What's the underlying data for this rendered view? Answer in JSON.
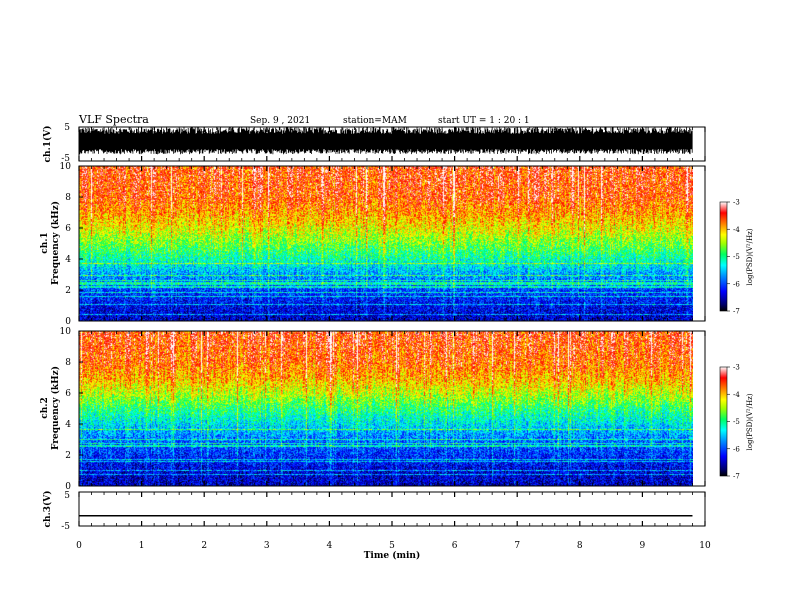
{
  "header": {
    "title": "VLF Spectra",
    "date": "Sep. 9 , 2021",
    "station": "station=MAM",
    "start": "start  UT =   1 : 20 : 1"
  },
  "colors": {
    "spectrum": [
      "#000080",
      "#0000ff",
      "#0080ff",
      "#00ffff",
      "#00ff80",
      "#80ff00",
      "#ffff00",
      "#ff8000",
      "#ff0000"
    ]
  },
  "chart_data": [
    {
      "type": "line",
      "panel": "ch1-waveform",
      "ylabel": "ch.1(V)",
      "yticks": [
        "5",
        "-5"
      ],
      "ylim": [
        -5,
        5
      ],
      "xlim": [
        0,
        10
      ],
      "description_values": {
        "amplitude_min": -3,
        "amplitude_max": 5
      }
    },
    {
      "type": "heatmap",
      "panel": "ch1-spectrogram",
      "ylabel": "ch.1\nFrequency (kHz)",
      "yticks": [
        "0",
        "2",
        "4",
        "6",
        "8",
        "10"
      ],
      "ylim": [
        0,
        10
      ],
      "xlim": [
        0,
        9.8
      ],
      "colorbar": {
        "label": "log(PSD)(V²/Hz)",
        "ticks": [
          "-3",
          "-4",
          "-5",
          "-6",
          "-7"
        ],
        "range": [
          -7,
          -3
        ]
      },
      "levels_by_frequency_khz": {
        "0": -6.5,
        "1": -6.3,
        "2": -6.0,
        "3": -5.6,
        "4": -5.0,
        "5": -4.5,
        "6": -4.0,
        "7": -3.6,
        "8": -3.3,
        "10": -3.2
      }
    },
    {
      "type": "heatmap",
      "panel": "ch2-spectrogram",
      "ylabel": "ch.2\nFrequency (kHz)",
      "yticks": [
        "0",
        "2",
        "4",
        "6",
        "8",
        "10"
      ],
      "ylim": [
        0,
        10
      ],
      "xlim": [
        0,
        9.8
      ],
      "colorbar": {
        "label": "log(PSD)(V²/Hz)",
        "ticks": [
          "-3",
          "-4",
          "-5",
          "-6",
          "-7"
        ],
        "range": [
          -7,
          -3
        ]
      },
      "levels_by_frequency_khz": {
        "0": -6.5,
        "1": -6.4,
        "2": -6.1,
        "3": -5.8,
        "4": -5.3,
        "5": -4.8,
        "6": -4.2,
        "7": -3.7,
        "8": -3.4,
        "10": -3.2
      }
    },
    {
      "type": "line",
      "panel": "ch3-waveform",
      "ylabel": "ch.3(V)",
      "yticks": [
        "5",
        "-5"
      ],
      "ylim": [
        -5,
        5
      ],
      "xlim": [
        0,
        9.8
      ],
      "constant_value": -2
    }
  ],
  "xaxis": {
    "label": "Time  (min)",
    "ticks": [
      "0",
      "1",
      "2",
      "3",
      "4",
      "5",
      "6",
      "7",
      "8",
      "9",
      "10"
    ],
    "range": [
      0,
      10
    ]
  }
}
